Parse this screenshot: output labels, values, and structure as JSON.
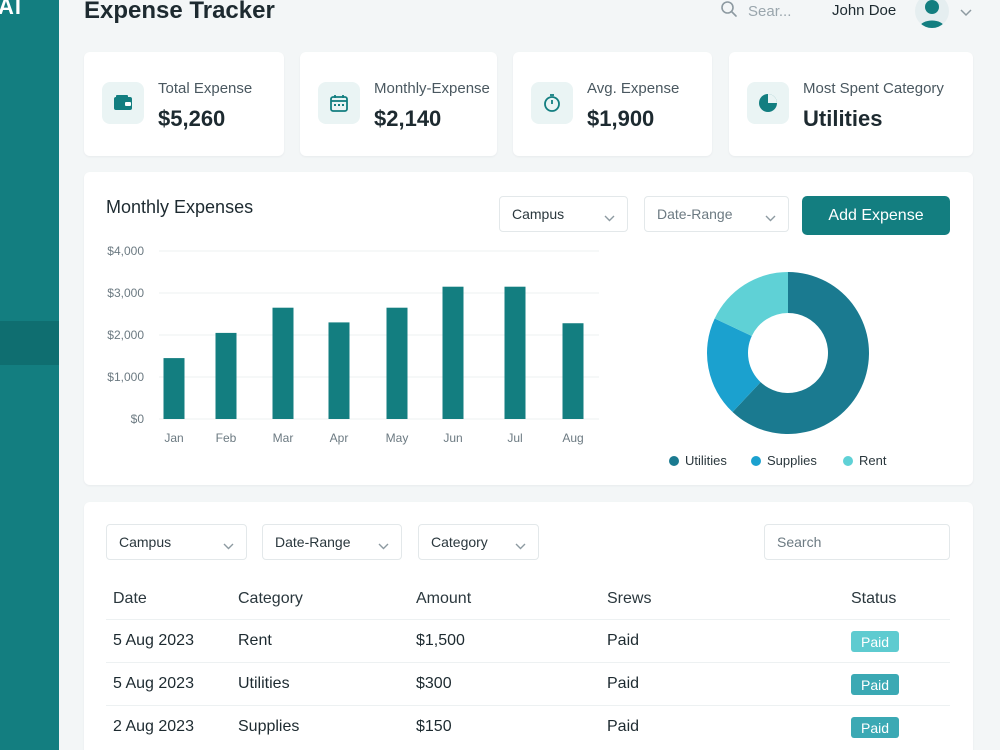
{
  "sidebar": {
    "brand": "AI"
  },
  "header": {
    "title": "Expense Tracker",
    "search_placeholder": "Sear...",
    "user_name": "John Doe"
  },
  "stats": [
    {
      "label": "Total Expense",
      "value": "$5,260",
      "icon": "wallet-icon"
    },
    {
      "label": "Monthly-Expense",
      "value": "$2,140",
      "icon": "calendar-icon"
    },
    {
      "label": "Avg. Expense",
      "value": "$1,900",
      "icon": "stopwatch-icon"
    },
    {
      "label": "Most Spent Category",
      "value": "Utilities",
      "icon": "pie-chart-icon"
    }
  ],
  "chart_section": {
    "title": "Monthly Expenses",
    "filter_campus": "Campus",
    "filter_date": "Date-Range",
    "add_button": "Add Expense"
  },
  "chart_data": [
    {
      "type": "bar",
      "categories": [
        "Jan",
        "Feb",
        "Mar",
        "Apr",
        "May",
        "Jun",
        "Jul",
        "Aug"
      ],
      "values": [
        1450,
        2050,
        2650,
        2300,
        2650,
        3150,
        3150,
        2280
      ],
      "y_ticks": [
        "$0",
        "$1,000",
        "$2,000",
        "$3,000",
        "$4,000"
      ],
      "ylim": [
        0,
        4000
      ],
      "grid": true,
      "color": "#137e80"
    },
    {
      "type": "pie",
      "donut": true,
      "labels": [
        "Utilities",
        "Supplies",
        "Rent"
      ],
      "values": [
        62,
        20,
        18
      ],
      "colors": [
        "#1a7a90",
        "#1ba1cf",
        "#5fd1d6"
      ],
      "legend": "bottom"
    }
  ],
  "table": {
    "filters": {
      "campus": "Campus",
      "date": "Date-Range",
      "category": "Category",
      "search_placeholder": "Search"
    },
    "columns": [
      "Date",
      "Category",
      "Amount",
      "Srews",
      "Status"
    ],
    "rows": [
      {
        "date": "5 Aug 2023",
        "category": "Rent",
        "amount": "$1,500",
        "srews": "Paid",
        "status": "Paid"
      },
      {
        "date": "5 Aug 2023",
        "category": "Utilities",
        "amount": "$300",
        "srews": "Paid",
        "status": "Paid"
      },
      {
        "date": "2 Aug 2023",
        "category": "Supplies",
        "amount": "$150",
        "srews": "Paid",
        "status": "Paid"
      }
    ],
    "badge_colors": [
      "#5ecbd0",
      "#3ba9b4",
      "#3ba9b4"
    ]
  }
}
